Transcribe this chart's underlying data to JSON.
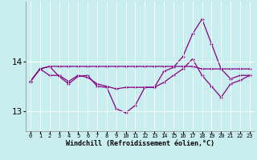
{
  "xlabel": "Windchill (Refroidissement éolien,°C)",
  "background_color": "#c8eef0",
  "line_color": "#880088",
  "x": [
    0,
    1,
    2,
    3,
    4,
    5,
    6,
    7,
    8,
    9,
    10,
    11,
    12,
    13,
    14,
    15,
    16,
    17,
    18,
    19,
    20,
    21,
    22,
    23
  ],
  "line1": [
    13.6,
    13.85,
    13.9,
    13.9,
    13.9,
    13.9,
    13.9,
    13.9,
    13.9,
    13.9,
    13.9,
    13.9,
    13.9,
    13.9,
    13.9,
    13.9,
    13.9,
    13.9,
    13.85,
    13.85,
    13.85,
    13.85,
    13.85,
    13.85
  ],
  "line2": [
    13.6,
    13.85,
    13.9,
    13.7,
    13.55,
    13.7,
    13.72,
    13.5,
    13.48,
    13.05,
    12.97,
    13.12,
    13.48,
    13.48,
    13.8,
    13.88,
    14.1,
    14.55,
    14.85,
    14.35,
    13.85,
    13.65,
    13.72,
    13.72
  ],
  "line3": [
    13.6,
    13.85,
    13.72,
    13.72,
    13.6,
    13.72,
    13.68,
    13.55,
    13.5,
    13.45,
    13.48,
    13.48,
    13.48,
    13.48,
    13.58,
    13.72,
    13.85,
    14.05,
    13.72,
    13.5,
    13.28,
    13.55,
    13.62,
    13.72
  ],
  "ylim": [
    12.6,
    15.2
  ],
  "yticks": [
    13,
    14
  ],
  "xlim": [
    -0.5,
    23.5
  ]
}
